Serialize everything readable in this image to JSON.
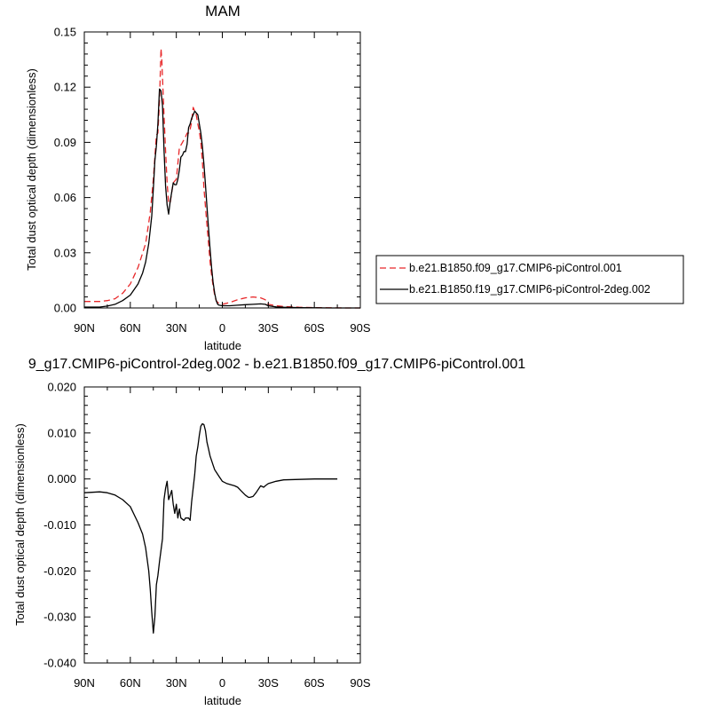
{
  "chart_data": [
    {
      "type": "line",
      "title": "MAM",
      "xlabel": "latitude",
      "ylabel": "Total dust optical depth (dimensionless)",
      "xlim": [
        90,
        -90
      ],
      "ylim": [
        0,
        0.15
      ],
      "x_ticks": [
        90,
        60,
        30,
        0,
        -30,
        -60,
        -90
      ],
      "x_tick_labels": [
        "90N",
        "60N",
        "30N",
        "0",
        "30S",
        "60S",
        "90S"
      ],
      "y_ticks": [
        0,
        0.03,
        0.06,
        0.09,
        0.12,
        0.15
      ],
      "y_tick_labels": [
        "0.00",
        "0.03",
        "0.06",
        "0.09",
        "0.12",
        "0.15"
      ],
      "legend": "right",
      "series": [
        {
          "name": "b.e21.B1850.f09_g17.CMIP6-piControl.001",
          "color": "#e8282a",
          "dash": "dashed",
          "x": [
            90,
            80,
            75,
            70,
            65,
            60,
            55,
            50,
            47,
            45,
            43,
            42,
            41,
            40,
            39.5,
            39,
            38,
            37,
            36,
            35,
            34,
            33,
            32,
            30,
            28,
            26,
            24,
            23,
            22,
            21,
            20,
            19,
            18,
            17,
            16,
            15,
            14,
            13,
            12,
            11,
            10,
            9,
            8,
            7,
            6,
            5,
            4,
            3,
            2,
            0,
            -5,
            -10,
            -15,
            -20,
            -25,
            -28,
            -30,
            -35,
            -40,
            -50,
            -60,
            -70,
            -80,
            -90
          ],
          "y": [
            0.0035,
            0.0035,
            0.004,
            0.005,
            0.008,
            0.013,
            0.022,
            0.035,
            0.052,
            0.07,
            0.094,
            0.095,
            0.112,
            0.141,
            0.135,
            0.125,
            0.105,
            0.085,
            0.068,
            0.057,
            0.057,
            0.063,
            0.068,
            0.07,
            0.087,
            0.09,
            0.093,
            0.095,
            0.095,
            0.097,
            0.101,
            0.109,
            0.107,
            0.105,
            0.1,
            0.096,
            0.09,
            0.08,
            0.065,
            0.055,
            0.045,
            0.035,
            0.025,
            0.018,
            0.012,
            0.007,
            0.004,
            0.003,
            0.0025,
            0.002,
            0.003,
            0.0045,
            0.0055,
            0.006,
            0.0055,
            0.0045,
            0.002,
            0.0012,
            0.0008,
            0.0004,
            0.0002,
            0.0001,
            0.0,
            0.0
          ]
        },
        {
          "name": "b.e21.B1850.f19_g17.CMIP6-piControl-2deg.002",
          "color": "#000000",
          "dash": "solid",
          "x": [
            90,
            80,
            75,
            70,
            65,
            60,
            55,
            52,
            50,
            48,
            46,
            45,
            44,
            43,
            42,
            41,
            40,
            39,
            38,
            37,
            36,
            35,
            34,
            33,
            32,
            31,
            30,
            29,
            28,
            27,
            26,
            25,
            24,
            23,
            22,
            21,
            20,
            19,
            18,
            17,
            16,
            15,
            14,
            13,
            12,
            11,
            10,
            9,
            8,
            7,
            6,
            5,
            4,
            3,
            2,
            0,
            -5,
            -10,
            -15,
            -20,
            -25,
            -28,
            -30,
            -35,
            -40,
            -50,
            -60,
            -70,
            -80,
            -90
          ],
          "y": [
            0.0005,
            0.0005,
            0.001,
            0.002,
            0.004,
            0.007,
            0.013,
            0.019,
            0.025,
            0.035,
            0.05,
            0.065,
            0.08,
            0.088,
            0.1,
            0.119,
            0.118,
            0.11,
            0.086,
            0.066,
            0.056,
            0.051,
            0.058,
            0.063,
            0.068,
            0.067,
            0.067,
            0.07,
            0.075,
            0.082,
            0.083,
            0.085,
            0.085,
            0.089,
            0.098,
            0.1,
            0.103,
            0.105,
            0.107,
            0.106,
            0.105,
            0.1,
            0.095,
            0.088,
            0.078,
            0.067,
            0.055,
            0.043,
            0.032,
            0.022,
            0.014,
            0.008,
            0.004,
            0.002,
            0.0015,
            0.0012,
            0.0012,
            0.0015,
            0.0018,
            0.002,
            0.0022,
            0.002,
            0.0012,
            0.0006,
            0.0004,
            0.0002,
            0.0001,
            0.0,
            0.0,
            0.0
          ]
        }
      ]
    },
    {
      "type": "line",
      "title": "9_g17.CMIP6-piControl-2deg.002 - b.e21.B1850.f09_g17.CMIP6-piControl.001",
      "xlabel": "latitude",
      "ylabel": "Total dust optical depth (dimensionless)",
      "xlim": [
        90,
        -90
      ],
      "ylim": [
        -0.04,
        0.02
      ],
      "x_ticks": [
        90,
        60,
        30,
        0,
        -30,
        -60,
        -90
      ],
      "x_tick_labels": [
        "90N",
        "60N",
        "30N",
        "0",
        "30S",
        "60S",
        "90S"
      ],
      "y_ticks": [
        -0.04,
        -0.03,
        -0.02,
        -0.01,
        0,
        0.01,
        0.02
      ],
      "y_tick_labels": [
        "-0.040",
        "-0.030",
        "-0.020",
        "-0.010",
        "0.000",
        "0.010",
        "0.020"
      ],
      "series": [
        {
          "name": "",
          "color": "#000000",
          "dash": "solid",
          "x": [
            90,
            80,
            75,
            70,
            65,
            60,
            55,
            52,
            50,
            48,
            47,
            46,
            45,
            44,
            43,
            42,
            41,
            40,
            39,
            38,
            37,
            36,
            35,
            34,
            33,
            32,
            31,
            30,
            29,
            28,
            27,
            25,
            24,
            22,
            21,
            20,
            18,
            17,
            16,
            15,
            14,
            13,
            12,
            11,
            10,
            9,
            8,
            7,
            6,
            5,
            4,
            2,
            0,
            -3,
            -5,
            -8,
            -10,
            -12,
            -15,
            -17,
            -18,
            -20,
            -22,
            -25,
            -27,
            -28,
            -30,
            -35,
            -40,
            -50,
            -60,
            -70,
            -75
          ],
          "y": [
            -0.003,
            -0.0028,
            -0.003,
            -0.0035,
            -0.0045,
            -0.006,
            -0.0095,
            -0.012,
            -0.015,
            -0.02,
            -0.024,
            -0.029,
            -0.0335,
            -0.03,
            -0.023,
            -0.021,
            -0.018,
            -0.0155,
            -0.013,
            -0.0045,
            -0.002,
            -0.0005,
            -0.0045,
            -0.0035,
            -0.0025,
            -0.0055,
            -0.0075,
            -0.0055,
            -0.0085,
            -0.0065,
            -0.0085,
            -0.009,
            -0.0085,
            -0.0085,
            -0.009,
            -0.005,
            0.001,
            0.005,
            0.007,
            0.0095,
            0.0115,
            0.012,
            0.0118,
            0.0105,
            0.008,
            0.0065,
            0.005,
            0.004,
            0.003,
            0.002,
            0.0015,
            0.0005,
            -0.0005,
            -0.001,
            -0.0012,
            -0.0015,
            -0.0018,
            -0.0025,
            -0.0035,
            -0.004,
            -0.004,
            -0.0038,
            -0.003,
            -0.0015,
            -0.0018,
            -0.0015,
            -0.001,
            -0.0005,
            -0.0002,
            -0.0001,
            0.0,
            0.0,
            0.0
          ]
        }
      ]
    }
  ]
}
